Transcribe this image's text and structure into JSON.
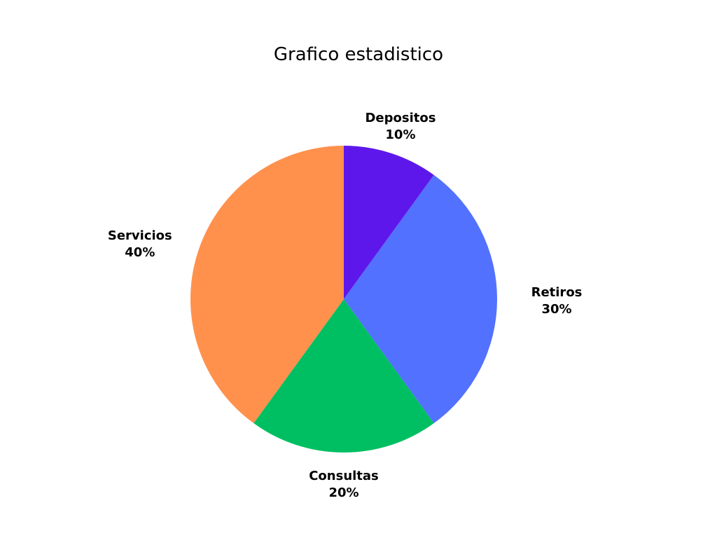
{
  "chart_data": {
    "type": "pie",
    "title": "Grafico estadistico",
    "slices": [
      {
        "label": "Depositos",
        "value": 10,
        "value_label": "10%",
        "color": "#5e17eb"
      },
      {
        "label": "Retiros",
        "value": 30,
        "value_label": "30%",
        "color": "#5271ff"
      },
      {
        "label": "Consultas",
        "value": 20,
        "value_label": "20%",
        "color": "#00bf63"
      },
      {
        "label": "Servicios",
        "value": 40,
        "value_label": "40%",
        "color": "#ff914d"
      }
    ],
    "start_angle": "top",
    "direction": "clockwise",
    "legend": "none",
    "data_labels": "outside"
  }
}
